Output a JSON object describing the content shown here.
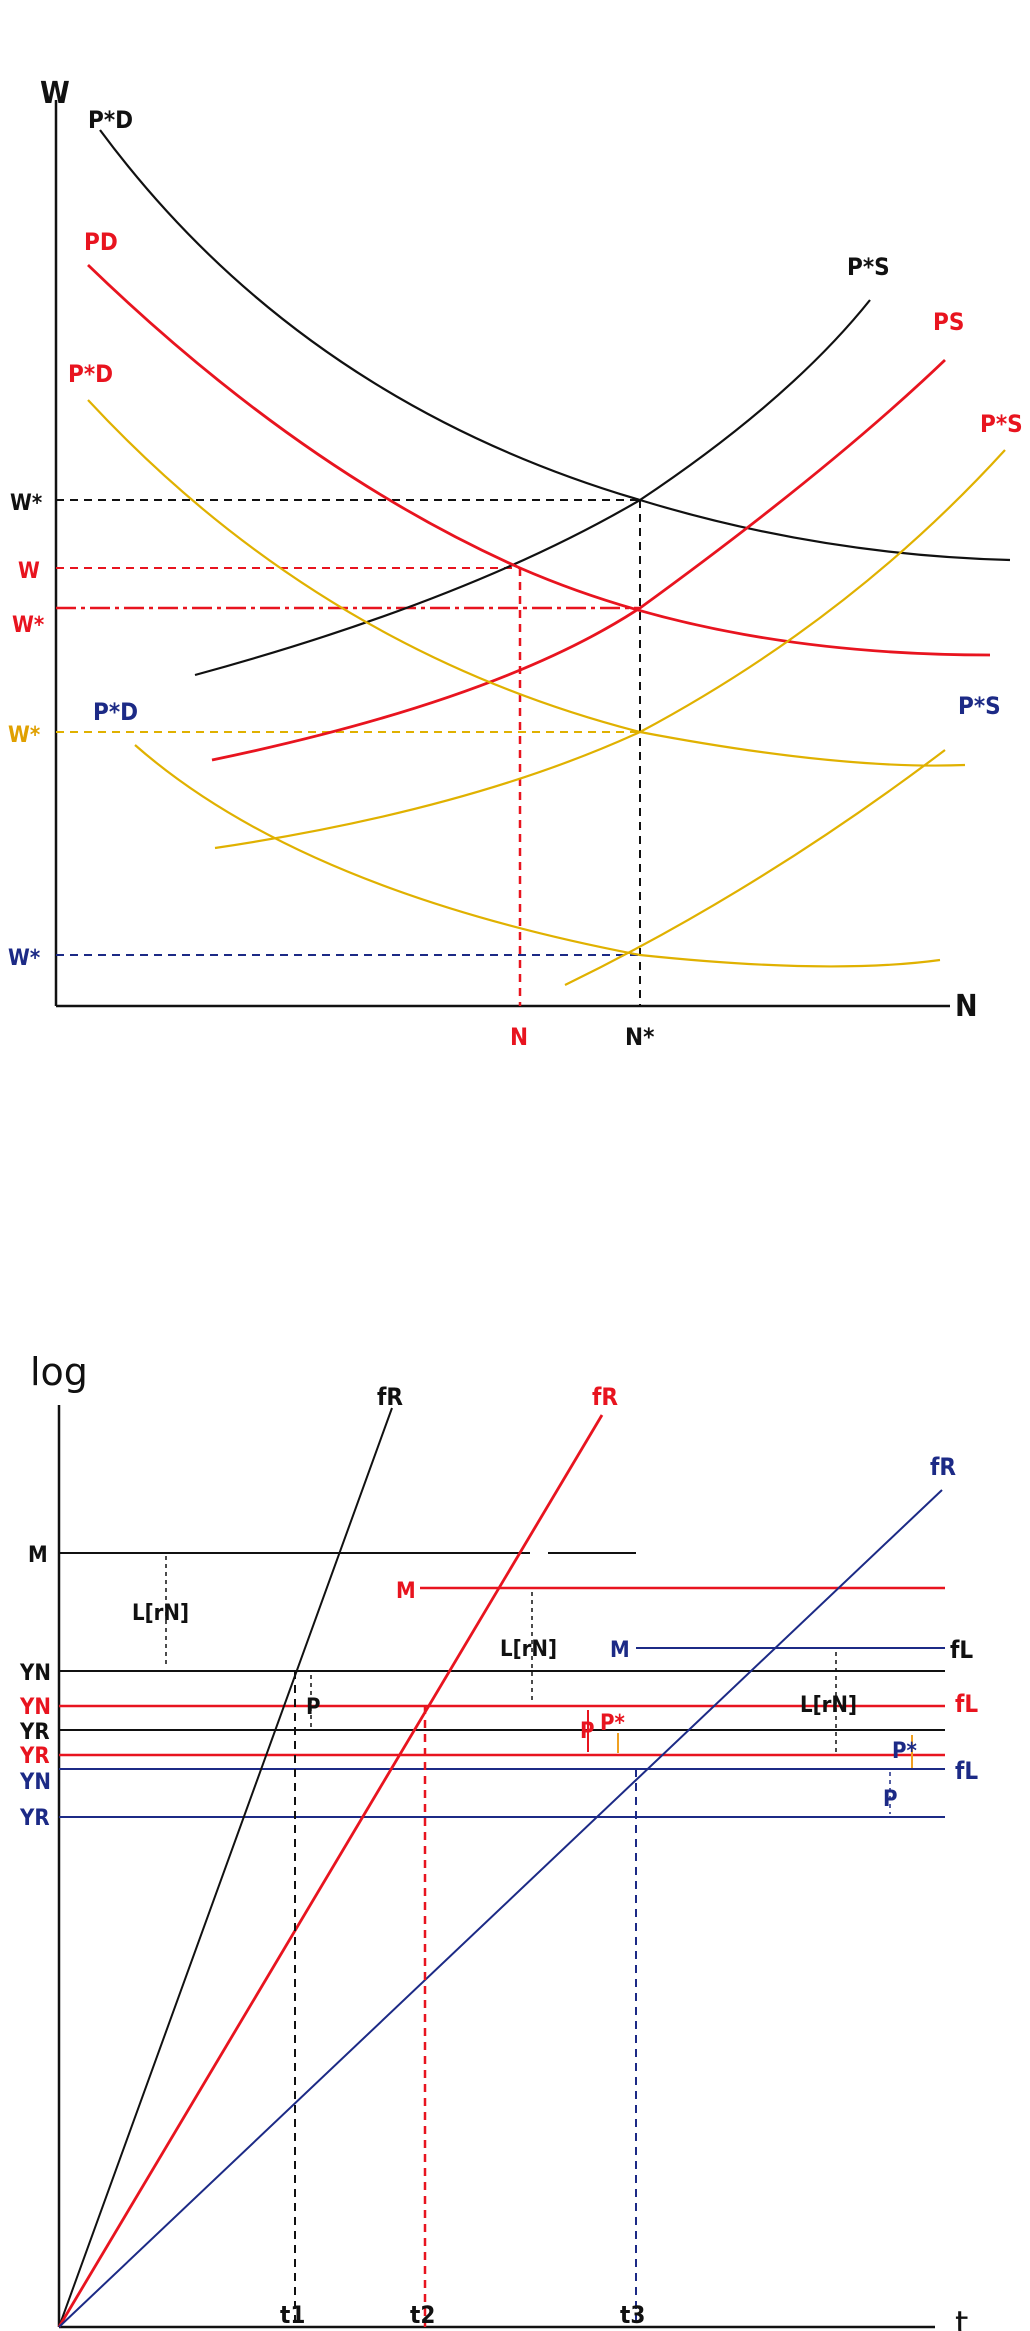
{
  "colors": {
    "black": "#111111",
    "red": "#e8141f",
    "gold": "#e0b100",
    "blue": "#1c2a86",
    "orange": "#f0a020"
  },
  "top": {
    "y_axis_label": "W",
    "x_axis_label": "N",
    "curve_labels": {
      "black_demand": "P*D",
      "black_supply": "P*S",
      "red_demand": "PD",
      "red_supply": "PS",
      "gold_demand": "P*D",
      "gold_supply": "P*S",
      "blue_demand": "P*D",
      "blue_supply": "P*S"
    },
    "y_ticks": {
      "black_wstar": "W*",
      "red_w": "W",
      "red_wstar": "W*",
      "gold_wstar": "W*",
      "blue_wstar": "W*"
    },
    "x_ticks": {
      "red_n": "N",
      "black_nstar": "N*"
    }
  },
  "bottom": {
    "y_axis_label": "log",
    "x_axis_label": "t",
    "fr_labels": {
      "black": "fR",
      "red": "fR",
      "blue": "fR"
    },
    "fl_labels": {
      "black": "fL",
      "red": "fL",
      "blue": "fL"
    },
    "m_labels": {
      "black": "M",
      "red": "M",
      "blue": "M"
    },
    "y_ticks": {
      "m": "M",
      "yn_black": "YN",
      "yn_red": "YN",
      "yr_black": "YR",
      "yr_red": "YR",
      "yn_blue": "YN",
      "yr_blue": "YR"
    },
    "annotations": {
      "lrn_black": "L[rN]",
      "lrn_red": "L[rN]",
      "lrn_blue": "L[rN]",
      "p_black": "P",
      "p_red": "P",
      "pstar_red": "P*",
      "pstar_right": "P*",
      "p_blue": "P"
    },
    "t_ticks": {
      "t1": "t1",
      "t2": "t2",
      "t3": "t3"
    }
  }
}
